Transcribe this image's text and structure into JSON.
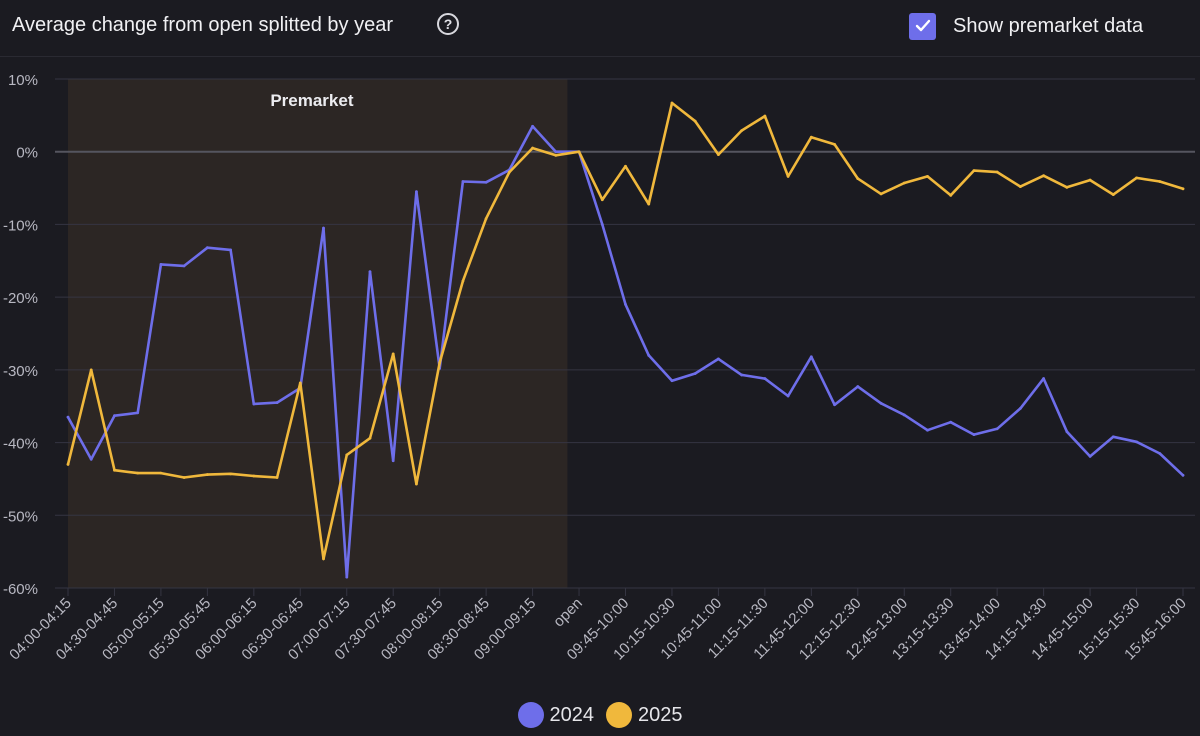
{
  "header": {
    "title": "Average change from open splitted by year",
    "help_icon": "question-circle-icon",
    "toggle_label": "Show premarket data",
    "toggle_checked": true
  },
  "colors": {
    "series_2024": "#6e6eea",
    "series_2025": "#f0b83c",
    "premarket_band": "#2c2624",
    "grid": "#353542",
    "zero_line": "#55555f"
  },
  "chart_data": {
    "type": "line",
    "title": "Average change from open splitted by year",
    "ylim": [
      -60,
      10
    ],
    "yticks": [
      10,
      0,
      -10,
      -20,
      -30,
      -40,
      -50,
      -60
    ],
    "ytick_labels": [
      "10%",
      "0%",
      "-10%",
      "-20%",
      "-30%",
      "-40%",
      "-50%",
      "-60%"
    ],
    "band_label": "Premarket",
    "band_range": [
      "04:00-04:15",
      "09:15-09:30"
    ],
    "categories": [
      "04:00-04:15",
      "04:15-04:30",
      "04:30-04:45",
      "04:45-05:00",
      "05:00-05:15",
      "05:15-05:30",
      "05:30-05:45",
      "05:45-06:00",
      "06:00-06:15",
      "06:15-06:30",
      "06:30-06:45",
      "06:45-07:00",
      "07:00-07:15",
      "07:15-07:30",
      "07:30-07:45",
      "07:45-08:00",
      "08:00-08:15",
      "08:15-08:30",
      "08:30-08:45",
      "08:45-09:00",
      "09:00-09:15",
      "09:15-09:30",
      "open",
      "09:30-09:45",
      "09:45-10:00",
      "10:00-10:15",
      "10:15-10:30",
      "10:30-10:45",
      "10:45-11:00",
      "11:00-11:15",
      "11:15-11:30",
      "11:30-11:45",
      "11:45-12:00",
      "12:00-12:15",
      "12:15-12:30",
      "12:30-12:45",
      "12:45-13:00",
      "13:00-13:15",
      "13:15-13:30",
      "13:30-13:45",
      "13:45-14:00",
      "14:00-14:15",
      "14:15-14:30",
      "14:30-14:45",
      "14:45-15:00",
      "15:00-15:15",
      "15:15-15:30",
      "15:30-15:45",
      "15:45-16:00"
    ],
    "visible_tick_labels": [
      "04:00-04:15",
      "04:30-04:45",
      "05:00-05:15",
      "05:30-05:45",
      "06:00-06:15",
      "06:30-06:45",
      "07:00-07:15",
      "07:30-07:45",
      "08:00-08:15",
      "08:30-08:45",
      "09:00-09:15",
      "open",
      "09:45-10:00",
      "10:15-10:30",
      "10:45-11:00",
      "11:15-11:30",
      "11:45-12:00",
      "12:15-12:30",
      "12:45-13:00",
      "13:15-13:30",
      "13:45-14:00",
      "14:15-14:30",
      "14:45-15:00",
      "15:15-15:30",
      "15:45-16:00"
    ],
    "series": [
      {
        "name": "2024",
        "values": [
          -36.5,
          -42.3,
          -36.3,
          -35.9,
          -15.5,
          -15.7,
          -13.2,
          -13.5,
          -34.7,
          -34.5,
          -32.5,
          -10.5,
          -58.5,
          -16.5,
          -42.5,
          -5.5,
          -29.8,
          -4.1,
          -4.2,
          -2.5,
          3.5,
          0,
          0,
          -10,
          -21,
          -28,
          -31.5,
          -30.5,
          -28.5,
          -30.7,
          -31.2,
          -33.6,
          -28.2,
          -34.8,
          -32.3,
          -34.6,
          -36.2,
          -38.3,
          -37.2,
          -38.9,
          -38.1,
          -35.3,
          -31.2,
          -38.5,
          -41.9,
          -39.2,
          -39.9,
          -41.5,
          -44.5
        ]
      },
      {
        "name": "2025",
        "values": [
          -43,
          -30,
          -43.8,
          -44.2,
          -44.2,
          -44.8,
          -44.4,
          -44.3,
          -44.6,
          -44.8,
          -31.8,
          -56,
          -41.7,
          -39.4,
          -27.8,
          -45.7,
          -29,
          -17.8,
          -9.2,
          -2.8,
          0.5,
          -0.5,
          0,
          -6.6,
          -2,
          -7.2,
          6.7,
          4.2,
          -0.4,
          2.9,
          4.9,
          -3.4,
          2,
          1,
          -3.7,
          -5.8,
          -4.3,
          -3.4,
          -6,
          -2.6,
          -2.8,
          -4.8,
          -3.3,
          -4.9,
          -3.9,
          -5.9,
          -3.6,
          -4.1,
          -5.1
        ]
      }
    ],
    "legend": [
      "2024",
      "2025"
    ],
    "legend_position": "bottom-center",
    "grid": true
  }
}
